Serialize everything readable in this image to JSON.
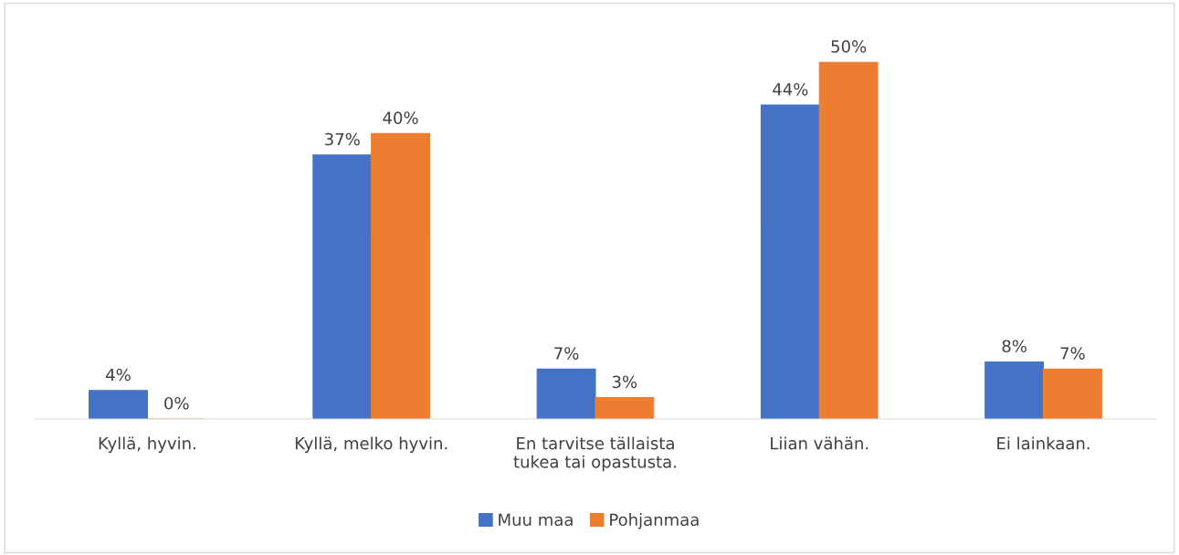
{
  "chart_data": {
    "type": "bar",
    "categories": [
      "Kyllä, hyvin.",
      "Kyllä, melko hyvin.",
      "En tarvitse tällaista\ntukea tai opastusta.",
      "Liian vähän.",
      "Ei lainkaan."
    ],
    "series": [
      {
        "name": "Muu maa",
        "color": "#4472c4",
        "values": [
          4,
          37,
          7,
          44,
          8
        ],
        "value_labels": [
          "4%",
          "37%",
          "7%",
          "44%",
          "8%"
        ]
      },
      {
        "name": "Pohjanmaa",
        "color": "#ed7d31",
        "values": [
          0,
          40,
          3,
          50,
          7
        ],
        "value_labels": [
          "0%",
          "40%",
          "3%",
          "50%",
          "7%"
        ]
      }
    ],
    "legend": "bottom",
    "grid": false
  }
}
